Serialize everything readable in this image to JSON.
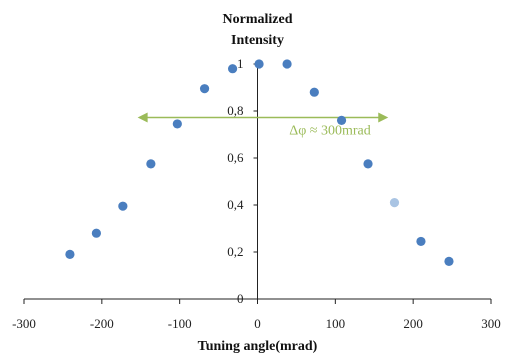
{
  "chart_data": {
    "type": "scatter",
    "title": "",
    "xlabel": "Tuning angle(mrad)",
    "ylabel": "Normalized Intensity",
    "xlim": [
      -300,
      300
    ],
    "ylim": [
      0,
      1
    ],
    "x_ticks": [
      -300,
      -200,
      -100,
      0,
      100,
      200,
      300
    ],
    "y_ticks": [
      0,
      0.2,
      0.4,
      0.6,
      0.8,
      1
    ],
    "x_tick_labels": [
      "-300",
      "-200",
      "-100",
      "0",
      "100",
      "200",
      "300"
    ],
    "y_tick_labels": [
      "0",
      "0,2",
      "0,4",
      "0,6",
      "0,8",
      "1"
    ],
    "grid": false,
    "series": [
      {
        "color": "#4a7ebf",
        "points": [
          {
            "x": -241,
            "y": 0.19
          },
          {
            "x": -207,
            "y": 0.28
          },
          {
            "x": -173,
            "y": 0.395
          },
          {
            "x": -137,
            "y": 0.575
          },
          {
            "x": -103,
            "y": 0.745
          },
          {
            "x": -68,
            "y": 0.895
          },
          {
            "x": -32,
            "y": 0.98
          },
          {
            "x": 2,
            "y": 1.0
          },
          {
            "x": 38,
            "y": 1.0
          },
          {
            "x": 73,
            "y": 0.88
          },
          {
            "x": 108,
            "y": 0.76
          },
          {
            "x": 142,
            "y": 0.575
          },
          {
            "x": 210,
            "y": 0.245
          },
          {
            "x": 246,
            "y": 0.16
          }
        ]
      },
      {
        "color": "#a9c4e3",
        "points": [
          {
            "x": 176,
            "y": 0.41
          }
        ]
      }
    ],
    "annotation": {
      "text": "Δφ ≈ 300mrad",
      "color": "#9bbb59",
      "arrow_from_x": -154,
      "arrow_to_x": 168,
      "arrow_y": 0.5
    }
  }
}
